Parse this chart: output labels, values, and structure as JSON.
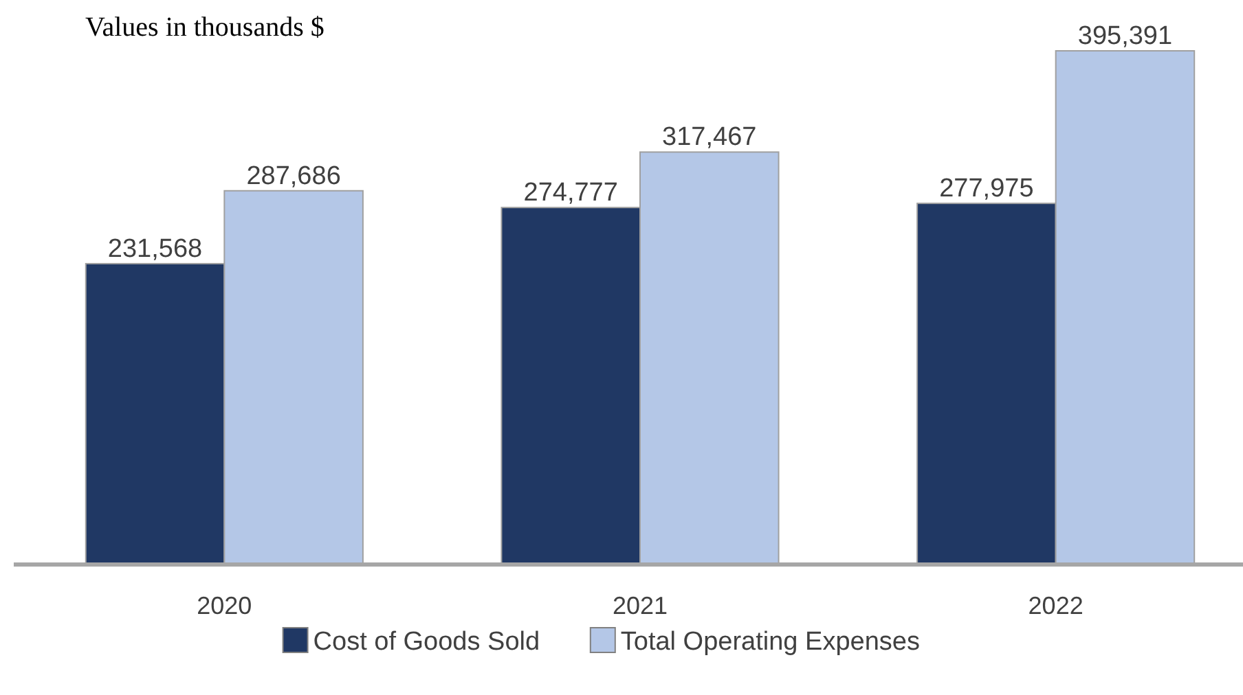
{
  "chart_data": {
    "type": "bar",
    "title": "Values in thousands $",
    "categories": [
      "2020",
      "2021",
      "2022"
    ],
    "series": [
      {
        "name": "Cost of Goods Sold",
        "color": "#203864",
        "values": [
          231568,
          274777,
          277975
        ],
        "value_labels": [
          "231,568",
          "274,777",
          "277,975"
        ]
      },
      {
        "name": "Total Operating Expenses",
        "color": "#b4c7e7",
        "values": [
          287686,
          317467,
          395391
        ],
        "value_labels": [
          "287,686",
          "317,467",
          "395,391"
        ]
      }
    ],
    "legend": "bottom"
  }
}
